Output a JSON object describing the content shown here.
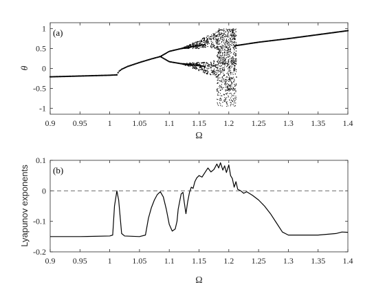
{
  "chart_data": [
    {
      "type": "scatter",
      "panel_label": "(a)",
      "xlabel": "Ω",
      "ylabel": "θ",
      "xlim": [
        0.9,
        1.4
      ],
      "ylim": [
        -1.15,
        1.15
      ],
      "xticks": [
        0.9,
        0.95,
        1.0,
        1.05,
        1.1,
        1.15,
        1.2,
        1.25,
        1.3,
        1.35,
        1.4
      ],
      "xtick_labels": [
        "0.9",
        "0.95",
        "1",
        "1.05",
        "1.1",
        "1.15",
        "1.2",
        "1.25",
        "1.3",
        "1.35",
        "1.4"
      ],
      "yticks": [
        -1,
        -0.5,
        0,
        0.5,
        1
      ],
      "ytick_labels": [
        "-1",
        "-0.5",
        "0",
        "0.5",
        "1"
      ],
      "grid": false,
      "marker_color": "#000000",
      "branches": [
        {
          "name": "period-1 left",
          "x": [
            0.9,
            1.0,
            1.012
          ],
          "y": [
            -0.21,
            -0.17,
            -0.16
          ]
        },
        {
          "name": "jump",
          "x": [
            1.012,
            1.015,
            1.02,
            1.03,
            1.05,
            1.07,
            1.085
          ],
          "y": [
            -0.16,
            -0.08,
            -0.02,
            0.05,
            0.15,
            0.24,
            0.3
          ]
        },
        {
          "name": "period-2 upper",
          "x": [
            1.085,
            1.1,
            1.12,
            1.14,
            1.16
          ],
          "y": [
            0.3,
            0.43,
            0.5,
            0.55,
            0.6
          ]
        },
        {
          "name": "period-2 lower",
          "x": [
            1.085,
            1.1,
            1.12,
            1.14,
            1.16
          ],
          "y": [
            0.3,
            0.17,
            0.12,
            0.09,
            0.05
          ]
        },
        {
          "name": "period-1 right",
          "x": [
            1.21,
            1.25,
            1.3,
            1.35,
            1.4
          ],
          "y": [
            0.57,
            0.66,
            0.75,
            0.85,
            0.95
          ]
        }
      ],
      "chaotic_window": {
        "x_range": [
          1.18,
          1.213
        ],
        "y_range": [
          -0.95,
          1.0
        ]
      }
    },
    {
      "type": "line",
      "panel_label": "(b)",
      "xlabel": "Ω",
      "ylabel": "Lyapunov exponents",
      "xlim": [
        0.9,
        1.4
      ],
      "ylim": [
        -0.2,
        0.1
      ],
      "xticks": [
        0.9,
        0.95,
        1.0,
        1.05,
        1.1,
        1.15,
        1.2,
        1.25,
        1.3,
        1.35,
        1.4
      ],
      "xtick_labels": [
        "0.9",
        "0.95",
        "1",
        "1.05",
        "1.1",
        "1.15",
        "1.2",
        "1.25",
        "1.3",
        "1.35",
        "1.4"
      ],
      "yticks": [
        -0.2,
        -0.1,
        0,
        0.1
      ],
      "ytick_labels": [
        "-0.2",
        "-0.1",
        "0",
        "0.1"
      ],
      "grid": false,
      "reference_line": {
        "y": 0,
        "style": "dashed",
        "color": "#555555"
      },
      "series": [
        {
          "color": "#000000",
          "x": [
            0.9,
            0.95,
            1.0,
            1.005,
            1.008,
            1.012,
            1.015,
            1.02,
            1.025,
            1.05,
            1.06,
            1.065,
            1.07,
            1.075,
            1.08,
            1.085,
            1.09,
            1.095,
            1.1,
            1.105,
            1.11,
            1.113,
            1.115,
            1.12,
            1.123,
            1.125,
            1.128,
            1.131,
            1.134,
            1.137,
            1.14,
            1.143,
            1.146,
            1.15,
            1.155,
            1.16,
            1.165,
            1.17,
            1.175,
            1.18,
            1.183,
            1.186,
            1.19,
            1.193,
            1.196,
            1.2,
            1.203,
            1.206,
            1.209,
            1.212,
            1.215,
            1.22,
            1.225,
            1.23,
            1.24,
            1.25,
            1.26,
            1.27,
            1.28,
            1.29,
            1.3,
            1.35,
            1.38,
            1.39,
            1.4
          ],
          "y": [
            -0.15,
            -0.15,
            -0.148,
            -0.145,
            -0.05,
            0.0,
            -0.03,
            -0.14,
            -0.148,
            -0.15,
            -0.145,
            -0.09,
            -0.055,
            -0.03,
            -0.012,
            -0.003,
            -0.02,
            -0.06,
            -0.11,
            -0.132,
            -0.125,
            -0.1,
            -0.06,
            -0.01,
            -0.005,
            -0.035,
            -0.075,
            -0.035,
            -0.005,
            0.012,
            0.008,
            0.03,
            0.042,
            0.05,
            0.045,
            0.06,
            0.075,
            0.062,
            0.07,
            0.088,
            0.075,
            0.092,
            0.068,
            0.082,
            0.06,
            0.085,
            0.05,
            0.04,
            0.012,
            0.03,
            0.005,
            0.0,
            -0.008,
            -0.003,
            -0.015,
            -0.03,
            -0.05,
            -0.075,
            -0.105,
            -0.135,
            -0.145,
            -0.145,
            -0.14,
            -0.135,
            -0.136
          ]
        }
      ]
    }
  ]
}
